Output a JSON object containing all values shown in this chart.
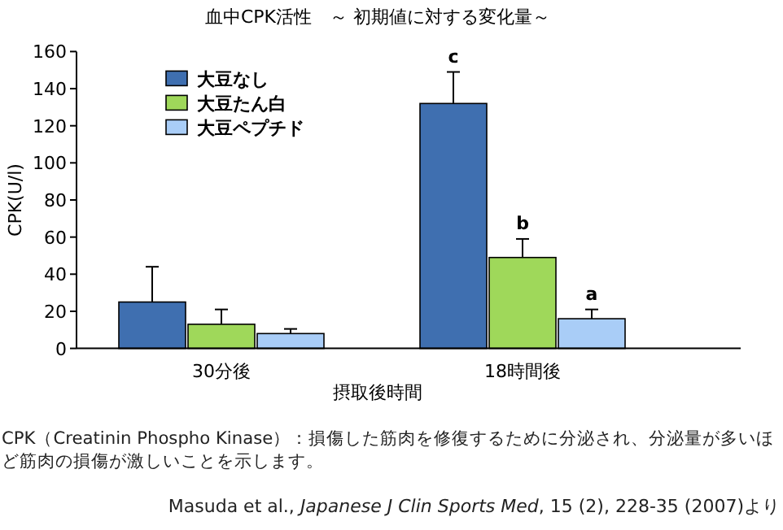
{
  "chart_data": {
    "type": "bar",
    "title": "血中CPK活性　～ 初期値に対する変化量～",
    "xlabel": "摂取後時間",
    "ylabel": "CPK(U/l)",
    "categories": [
      "30分後",
      "18時間後"
    ],
    "series": [
      {
        "name": "大豆なし",
        "color": "#3f6fb0",
        "values": [
          25,
          132
        ],
        "errors": [
          [
            25,
            44
          ],
          [
            132,
            149
          ]
        ]
      },
      {
        "name": "大豆たん白",
        "color": "#9fd85a",
        "values": [
          13,
          49
        ],
        "errors": [
          [
            13,
            21
          ],
          [
            49,
            59
          ]
        ]
      },
      {
        "name": "大豆ペプチド",
        "color": "#a9cdf7",
        "values": [
          8,
          16
        ],
        "errors": [
          [
            8,
            10.5
          ],
          [
            16,
            21
          ]
        ]
      }
    ],
    "ylim": [
      0,
      160
    ],
    "yticks": [
      0,
      20,
      40,
      60,
      80,
      100,
      120,
      140,
      160
    ],
    "grid": false,
    "legend": "top left",
    "annotations": [
      "c",
      "b",
      "a",
      "CPK（Creatinin Phospho Kinase）：損傷した筋肉を修復するために分泌され、分泌量が多いほど筋肉の損傷が激しいことを示します。",
      "Masuda et al., *Japanese J Clin Sports Med*, 15 (2), 228-35 (2007)より"
    ]
  }
}
